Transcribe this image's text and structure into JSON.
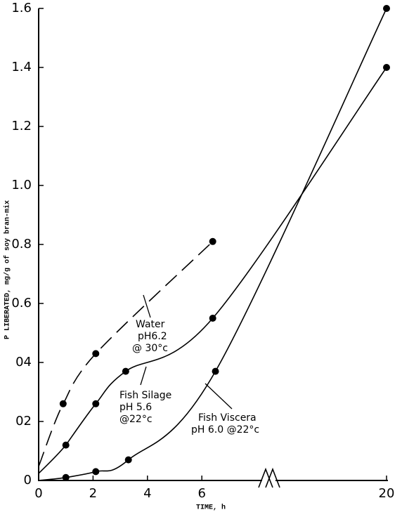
{
  "chart_data": {
    "type": "line",
    "ylabel": "P LIBERATED, mg/g of soy bran-mix",
    "xlabel": "TIME, h",
    "xlim": [
      0,
      20
    ],
    "xticks": [
      0,
      2,
      4,
      6,
      20
    ],
    "ylim": [
      0,
      1.6
    ],
    "yticks": [
      0,
      {
        "value": 0.2,
        "label": "02"
      },
      {
        "value": 0.4,
        "label": "04"
      },
      0.6,
      0.8,
      {
        "value": 1.0,
        "label": "1.0"
      },
      1.2,
      1.4,
      1.6
    ],
    "series": [
      {
        "name": "Water",
        "label_lines": [
          "pH6.2",
          "@ 30°c"
        ],
        "dashed": true,
        "color": "#000000",
        "x": [
          0.9,
          2.1,
          6.4
        ],
        "values": [
          0.26,
          0.43,
          0.81
        ]
      },
      {
        "name": "Fish Silage",
        "label_lines": [
          "pH 5.6",
          "@22°c"
        ],
        "dashed": false,
        "color": "#000000",
        "x": [
          1.0,
          2.1,
          3.2,
          6.4,
          20
        ],
        "values": [
          0.12,
          0.26,
          0.37,
          0.55,
          1.4
        ]
      },
      {
        "name": "Fish Viscera",
        "label_lines": [
          "pH 6.0 @22°c"
        ],
        "dashed": false,
        "color": "#000000",
        "x": [
          1.0,
          2.1,
          3.3,
          6.5,
          20
        ],
        "values": [
          0.01,
          0.03,
          0.07,
          0.37,
          1.6
        ]
      }
    ]
  }
}
